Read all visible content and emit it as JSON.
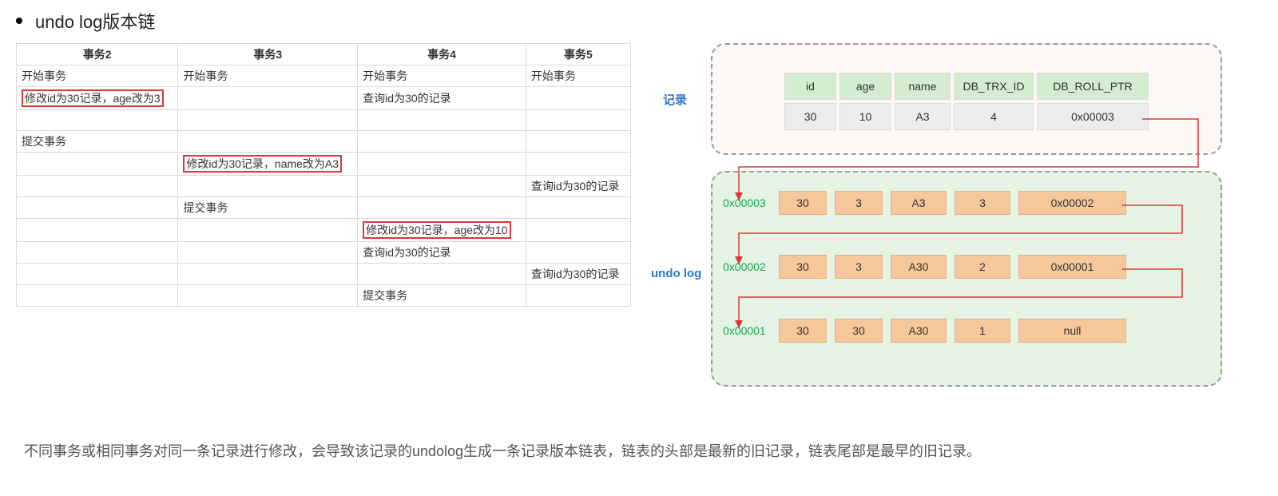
{
  "title": "undo log版本链",
  "tx_table": {
    "headers": [
      "事务2",
      "事务3",
      "事务4",
      "事务5"
    ],
    "rows": [
      [
        "开始事务",
        "开始事务",
        "开始事务",
        "开始事务"
      ],
      [
        {
          "text": "修改id为30记录，age改为3",
          "hl": true
        },
        "",
        "查询id为30的记录",
        ""
      ],
      [
        "",
        "",
        "",
        ""
      ],
      [
        "提交事务",
        "",
        "",
        ""
      ],
      [
        "",
        {
          "text": "修改id为30记录，name改为A3",
          "hl": true
        },
        "",
        ""
      ],
      [
        "",
        "",
        "",
        "查询id为30的记录"
      ],
      [
        "",
        "提交事务",
        "",
        ""
      ],
      [
        "",
        "",
        {
          "text": "修改id为30记录，age改为10",
          "hl": true
        },
        ""
      ],
      [
        "",
        "",
        "查询id为30的记录",
        ""
      ],
      [
        "",
        "",
        "",
        "查询id为30的记录"
      ],
      [
        "",
        "",
        "提交事务",
        ""
      ]
    ]
  },
  "diagram": {
    "side_labels": {
      "record": "记录",
      "undo": "undo log"
    },
    "record": {
      "headers": [
        "id",
        "age",
        "name",
        "DB_TRX_ID",
        "DB_ROLL_PTR"
      ],
      "values": [
        "30",
        "10",
        "A3",
        "4",
        "0x00003"
      ],
      "header_bg": "#d4ecd0",
      "value_bg": "#ececec"
    },
    "undo_rows": [
      {
        "addr": "0x00003",
        "cells": [
          "30",
          "3",
          "A3",
          "3",
          "0x00002"
        ]
      },
      {
        "addr": "0x00002",
        "cells": [
          "30",
          "3",
          "A30",
          "2",
          "0x00001"
        ]
      },
      {
        "addr": "0x00001",
        "cells": [
          "30",
          "30",
          "A30",
          "1",
          "null"
        ]
      }
    ],
    "undo_cell_bg": "#f5c79b",
    "arrow_color": "#d83a34",
    "addr_color": "#17a34a"
  },
  "footnote": "不同事务或相同事务对同一条记录进行修改，会导致该记录的undolog生成一条记录版本链表，链表的头部是最新的旧记录，链表尾部是最早的旧记录。"
}
